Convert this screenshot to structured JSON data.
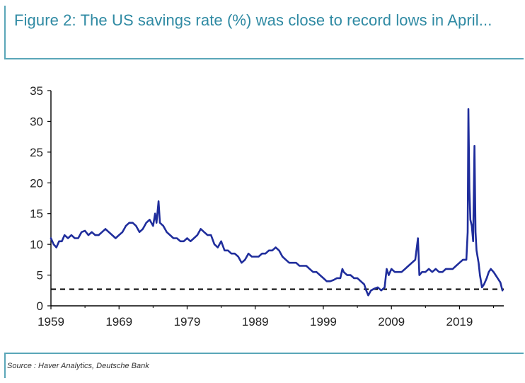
{
  "title": "Figure 2: The US savings rate (%) was close to record lows in April...",
  "source": "Source : Haver Analytics, Deutsche Bank",
  "colors": {
    "series": "#1f2d9c",
    "title": "#2f8aa3",
    "frame": "#5aa6b8",
    "axis": "#000000",
    "reference_line": "#000000"
  },
  "chart_data": {
    "type": "line",
    "title": "Figure 2: The US savings rate (%) was close to record lows in April...",
    "xlabel": "",
    "ylabel": "",
    "xlim": [
      1959,
      2025.5
    ],
    "ylim": [
      0,
      35
    ],
    "x_ticks": [
      "1959",
      "1969",
      "1979",
      "1989",
      "1999",
      "2009",
      "2019"
    ],
    "y_ticks": [
      "0",
      "5",
      "10",
      "15",
      "20",
      "25",
      "30",
      "35"
    ],
    "grid": false,
    "legend": "none",
    "reference_line": {
      "y": 2.7,
      "style": "dashed"
    },
    "series": [
      {
        "x": [
          1959.0,
          1959.4,
          1959.8,
          1960.2,
          1960.6,
          1961.0,
          1961.5,
          1962.0,
          1962.5,
          1963.0,
          1963.5,
          1964.0,
          1964.5,
          1965.0,
          1965.5,
          1966.0,
          1966.5,
          1967.0,
          1967.5,
          1968.0,
          1968.5,
          1969.0,
          1969.5,
          1970.0,
          1970.5,
          1971.0,
          1971.5,
          1972.0,
          1972.5,
          1973.0,
          1973.5,
          1974.0,
          1974.3,
          1974.5,
          1974.8,
          1975.0,
          1975.5,
          1976.0,
          1976.5,
          1977.0,
          1977.5,
          1978.0,
          1978.5,
          1979.0,
          1979.5,
          1980.0,
          1980.5,
          1981.0,
          1981.5,
          1982.0,
          1982.5,
          1983.0,
          1983.5,
          1984.0,
          1984.5,
          1985.0,
          1985.5,
          1986.0,
          1986.5,
          1987.0,
          1987.5,
          1988.0,
          1988.5,
          1989.0,
          1989.5,
          1990.0,
          1990.5,
          1991.0,
          1991.5,
          1992.0,
          1992.5,
          1993.0,
          1993.5,
          1994.0,
          1994.5,
          1995.0,
          1995.5,
          1996.0,
          1996.5,
          1997.0,
          1997.5,
          1998.0,
          1998.5,
          1999.0,
          1999.5,
          2000.0,
          2000.5,
          2001.0,
          2001.5,
          2001.8,
          2002.0,
          2002.5,
          2003.0,
          2003.5,
          2004.0,
          2004.5,
          2005.0,
          2005.3,
          2005.6,
          2006.0,
          2006.5,
          2007.0,
          2007.5,
          2008.0,
          2008.3,
          2008.6,
          2009.0,
          2009.5,
          2010.0,
          2010.5,
          2011.0,
          2011.5,
          2012.0,
          2012.5,
          2012.9,
          2013.1,
          2013.5,
          2014.0,
          2014.5,
          2015.0,
          2015.5,
          2016.0,
          2016.5,
          2017.0,
          2017.5,
          2018.0,
          2018.5,
          2019.0,
          2019.5,
          2020.0,
          2020.2,
          2020.3,
          2020.45,
          2020.6,
          2020.8,
          2021.0,
          2021.2,
          2021.35,
          2021.5,
          2021.8,
          2022.0,
          2022.3,
          2022.6,
          2023.0,
          2023.3,
          2023.6,
          2024.0,
          2024.3,
          2024.6,
          2025.0,
          2025.3
        ],
        "values": [
          11.0,
          10.0,
          9.5,
          10.5,
          10.5,
          11.5,
          11.0,
          11.5,
          11.0,
          11.0,
          12.0,
          12.2,
          11.5,
          12.0,
          11.5,
          11.5,
          12.0,
          12.5,
          12.0,
          11.5,
          11.0,
          11.5,
          12.0,
          13.0,
          13.5,
          13.5,
          13.0,
          12.0,
          12.5,
          13.5,
          14.0,
          13.0,
          15.0,
          13.5,
          17.0,
          13.5,
          13.0,
          12.0,
          11.5,
          11.0,
          11.0,
          10.5,
          10.5,
          11.0,
          10.5,
          11.0,
          11.5,
          12.5,
          12.0,
          11.5,
          11.5,
          10.0,
          9.5,
          10.5,
          9.0,
          9.0,
          8.5,
          8.5,
          8.0,
          7.0,
          7.5,
          8.5,
          8.0,
          8.0,
          8.0,
          8.5,
          8.5,
          9.0,
          9.0,
          9.5,
          9.0,
          8.0,
          7.5,
          7.0,
          7.0,
          7.0,
          6.5,
          6.5,
          6.5,
          6.0,
          5.5,
          5.5,
          5.0,
          4.5,
          4.0,
          4.0,
          4.2,
          4.5,
          4.5,
          6.0,
          5.5,
          5.0,
          5.0,
          4.5,
          4.5,
          4.0,
          3.5,
          2.5,
          1.7,
          2.5,
          2.8,
          3.0,
          2.5,
          3.0,
          6.0,
          5.0,
          6.0,
          5.5,
          5.5,
          5.5,
          6.0,
          6.5,
          7.0,
          7.5,
          11.0,
          5.0,
          5.5,
          5.5,
          6.0,
          5.5,
          6.0,
          5.5,
          5.5,
          6.0,
          6.0,
          6.0,
          6.5,
          7.0,
          7.5,
          7.5,
          12.0,
          32.0,
          19.0,
          14.0,
          13.0,
          10.5,
          26.0,
          12.0,
          9.0,
          7.0,
          5.0,
          3.0,
          3.5,
          4.5,
          5.5,
          6.0,
          5.5,
          5.0,
          4.5,
          3.8,
          2.5
        ]
      }
    ]
  }
}
